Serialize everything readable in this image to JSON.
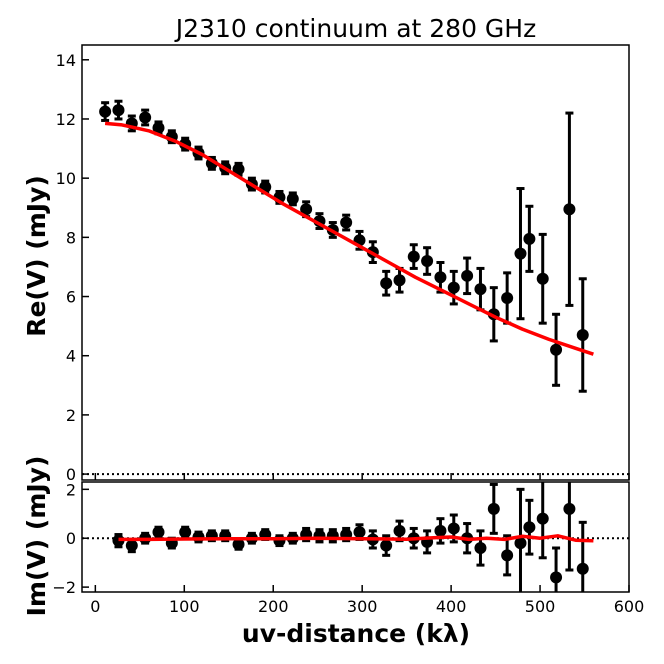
{
  "chart_data": {
    "type": "scatter",
    "title": "J2310 continuum at 280 GHz",
    "xlabel": "uv-distance (kλ)",
    "xlim": [
      -15,
      600
    ],
    "xticks": [
      0,
      100,
      200,
      300,
      400,
      500,
      600
    ],
    "colors": {
      "points": "#000000",
      "model": "#ff0000",
      "zero_line": "#000000"
    },
    "panels": [
      {
        "name": "real",
        "ylabel": "Re(V) (mJy)",
        "ylim": [
          -0.2,
          14.5
        ],
        "yticks": [
          0,
          2,
          4,
          6,
          8,
          10,
          12,
          14
        ],
        "zero_line": "dotted",
        "points": [
          {
            "x": 11,
            "y": 12.25,
            "err": 0.3
          },
          {
            "x": 26,
            "y": 12.3,
            "err": 0.3
          },
          {
            "x": 41,
            "y": 11.85,
            "err": 0.25
          },
          {
            "x": 56,
            "y": 12.05,
            "err": 0.25
          },
          {
            "x": 71,
            "y": 11.7,
            "err": 0.2
          },
          {
            "x": 86,
            "y": 11.4,
            "err": 0.2
          },
          {
            "x": 101,
            "y": 11.15,
            "err": 0.2
          },
          {
            "x": 116,
            "y": 10.85,
            "err": 0.2
          },
          {
            "x": 131,
            "y": 10.5,
            "err": 0.2
          },
          {
            "x": 146,
            "y": 10.35,
            "err": 0.2
          },
          {
            "x": 161,
            "y": 10.3,
            "err": 0.2
          },
          {
            "x": 176,
            "y": 9.8,
            "err": 0.2
          },
          {
            "x": 191,
            "y": 9.7,
            "err": 0.2
          },
          {
            "x": 207,
            "y": 9.35,
            "err": 0.2
          },
          {
            "x": 222,
            "y": 9.3,
            "err": 0.2
          },
          {
            "x": 237,
            "y": 8.95,
            "err": 0.25
          },
          {
            "x": 252,
            "y": 8.55,
            "err": 0.25
          },
          {
            "x": 267,
            "y": 8.25,
            "err": 0.25
          },
          {
            "x": 282,
            "y": 8.5,
            "err": 0.25
          },
          {
            "x": 297,
            "y": 7.9,
            "err": 0.3
          },
          {
            "x": 312,
            "y": 7.5,
            "err": 0.35
          },
          {
            "x": 327,
            "y": 6.45,
            "err": 0.4
          },
          {
            "x": 342,
            "y": 6.55,
            "err": 0.4
          },
          {
            "x": 358,
            "y": 7.35,
            "err": 0.4
          },
          {
            "x": 373,
            "y": 7.2,
            "err": 0.45
          },
          {
            "x": 388,
            "y": 6.65,
            "err": 0.5
          },
          {
            "x": 403,
            "y": 6.3,
            "err": 0.55
          },
          {
            "x": 418,
            "y": 6.7,
            "err": 0.6
          },
          {
            "x": 433,
            "y": 6.25,
            "err": 0.7
          },
          {
            "x": 448,
            "y": 5.4,
            "err": 0.9
          },
          {
            "x": 463,
            "y": 5.95,
            "err": 0.85
          },
          {
            "x": 478,
            "y": 7.45,
            "err": 2.2
          },
          {
            "x": 488,
            "y": 7.95,
            "err": 1.1
          },
          {
            "x": 503,
            "y": 6.6,
            "err": 1.5
          },
          {
            "x": 518,
            "y": 4.2,
            "err": 1.2
          },
          {
            "x": 533,
            "y": 8.95,
            "err": 3.25
          },
          {
            "x": 548,
            "y": 4.7,
            "err": 1.9
          }
        ],
        "model": {
          "x": [
            11,
            30,
            60,
            90,
            120,
            150,
            180,
            210,
            240,
            270,
            300,
            330,
            360,
            390,
            420,
            450,
            480,
            510,
            540,
            560
          ],
          "y": [
            11.85,
            11.8,
            11.6,
            11.25,
            10.8,
            10.25,
            9.7,
            9.15,
            8.65,
            8.15,
            7.65,
            7.15,
            6.65,
            6.2,
            5.75,
            5.3,
            4.9,
            4.55,
            4.25,
            4.05
          ]
        }
      },
      {
        "name": "imaginary",
        "ylabel": "Im(V) (mJy)",
        "ylim": [
          -2.2,
          2.3
        ],
        "yticks": [
          -2,
          0,
          2
        ],
        "zero_line": "dotted",
        "points": [
          {
            "x": 26,
            "y": -0.1,
            "err": 0.25
          },
          {
            "x": 41,
            "y": -0.3,
            "err": 0.25
          },
          {
            "x": 56,
            "y": 0.0,
            "err": 0.2
          },
          {
            "x": 71,
            "y": 0.25,
            "err": 0.2
          },
          {
            "x": 86,
            "y": -0.2,
            "err": 0.2
          },
          {
            "x": 101,
            "y": 0.25,
            "err": 0.2
          },
          {
            "x": 116,
            "y": 0.05,
            "err": 0.2
          },
          {
            "x": 131,
            "y": 0.1,
            "err": 0.2
          },
          {
            "x": 146,
            "y": 0.1,
            "err": 0.2
          },
          {
            "x": 161,
            "y": -0.25,
            "err": 0.2
          },
          {
            "x": 176,
            "y": 0.0,
            "err": 0.2
          },
          {
            "x": 191,
            "y": 0.15,
            "err": 0.2
          },
          {
            "x": 207,
            "y": -0.1,
            "err": 0.2
          },
          {
            "x": 222,
            "y": 0.0,
            "err": 0.2
          },
          {
            "x": 237,
            "y": 0.15,
            "err": 0.25
          },
          {
            "x": 252,
            "y": 0.1,
            "err": 0.25
          },
          {
            "x": 267,
            "y": 0.1,
            "err": 0.25
          },
          {
            "x": 282,
            "y": 0.15,
            "err": 0.25
          },
          {
            "x": 297,
            "y": 0.25,
            "err": 0.3
          },
          {
            "x": 312,
            "y": -0.05,
            "err": 0.35
          },
          {
            "x": 327,
            "y": -0.3,
            "err": 0.4
          },
          {
            "x": 342,
            "y": 0.3,
            "err": 0.4
          },
          {
            "x": 358,
            "y": 0.0,
            "err": 0.4
          },
          {
            "x": 373,
            "y": -0.15,
            "err": 0.45
          },
          {
            "x": 388,
            "y": 0.3,
            "err": 0.5
          },
          {
            "x": 403,
            "y": 0.4,
            "err": 0.55
          },
          {
            "x": 418,
            "y": 0.0,
            "err": 0.6
          },
          {
            "x": 433,
            "y": -0.4,
            "err": 0.7
          },
          {
            "x": 448,
            "y": 1.2,
            "err": 1.0
          },
          {
            "x": 463,
            "y": -0.7,
            "err": 0.8
          },
          {
            "x": 478,
            "y": -0.2,
            "err": 2.2
          },
          {
            "x": 488,
            "y": 0.45,
            "err": 1.1
          },
          {
            "x": 503,
            "y": 0.8,
            "err": 1.6
          },
          {
            "x": 518,
            "y": -1.6,
            "err": 1.2
          },
          {
            "x": 533,
            "y": 1.2,
            "err": 2.5
          },
          {
            "x": 548,
            "y": -1.25,
            "err": 1.9
          }
        ],
        "model": {
          "x": [
            26,
            60,
            100,
            150,
            200,
            250,
            300,
            350,
            380,
            400,
            420,
            440,
            460,
            480,
            500,
            520,
            540,
            560
          ],
          "y": [
            -0.05,
            -0.05,
            -0.03,
            -0.02,
            -0.02,
            0.0,
            -0.02,
            -0.04,
            0.02,
            0.05,
            -0.05,
            0.0,
            -0.05,
            0.08,
            0.0,
            0.1,
            -0.08,
            -0.1
          ]
        }
      }
    ]
  }
}
